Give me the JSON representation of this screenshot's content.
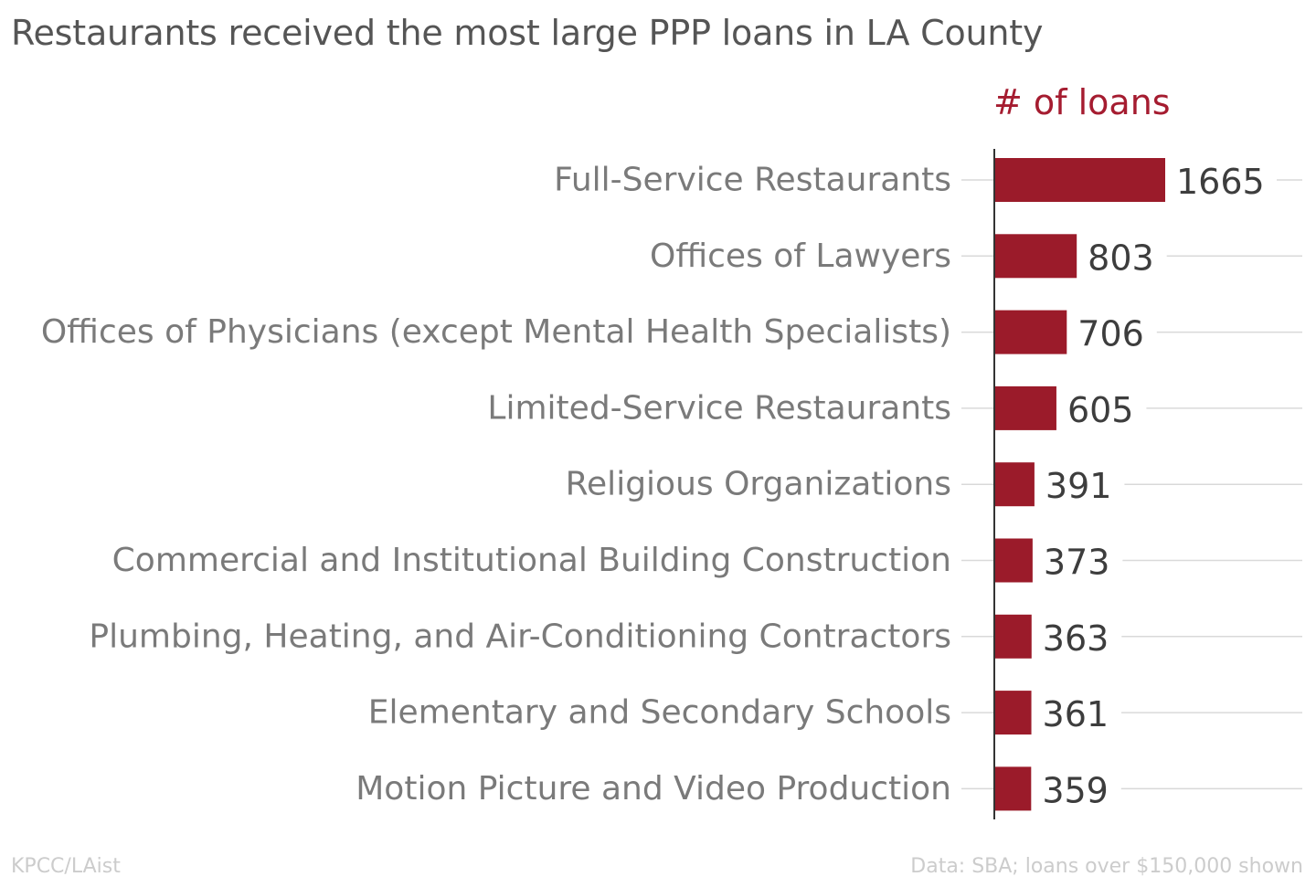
{
  "chart_data": {
    "type": "bar",
    "orientation": "horizontal",
    "title": "Restaurants received the most large PPP loans in LA County",
    "value_header": "# of loans",
    "categories": [
      "Full-Service Restaurants",
      "Offices of Lawyers",
      "Offices of Physicians (except Mental Health Specialists)",
      "Limited-Service Restaurants",
      "Religious Organizations",
      "Commercial and Institutional Building Construction",
      "Plumbing, Heating, and Air-Conditioning Contractors",
      "Elementary and Secondary Schools",
      "Motion Picture and Video Production"
    ],
    "values": [
      1665,
      803,
      706,
      605,
      391,
      373,
      363,
      361,
      359
    ],
    "value_labels": [
      "1665",
      "803",
      "706",
      "605",
      "391",
      "373",
      "363",
      "361",
      "359"
    ],
    "xlim": [
      0,
      1665
    ],
    "grid": true,
    "bar_color": "#9b1b2a",
    "header_color": "#a51c30"
  },
  "footer": {
    "source_left": "KPCC/LAist",
    "source_right": "Data: SBA; loans over $150,000 shown"
  }
}
